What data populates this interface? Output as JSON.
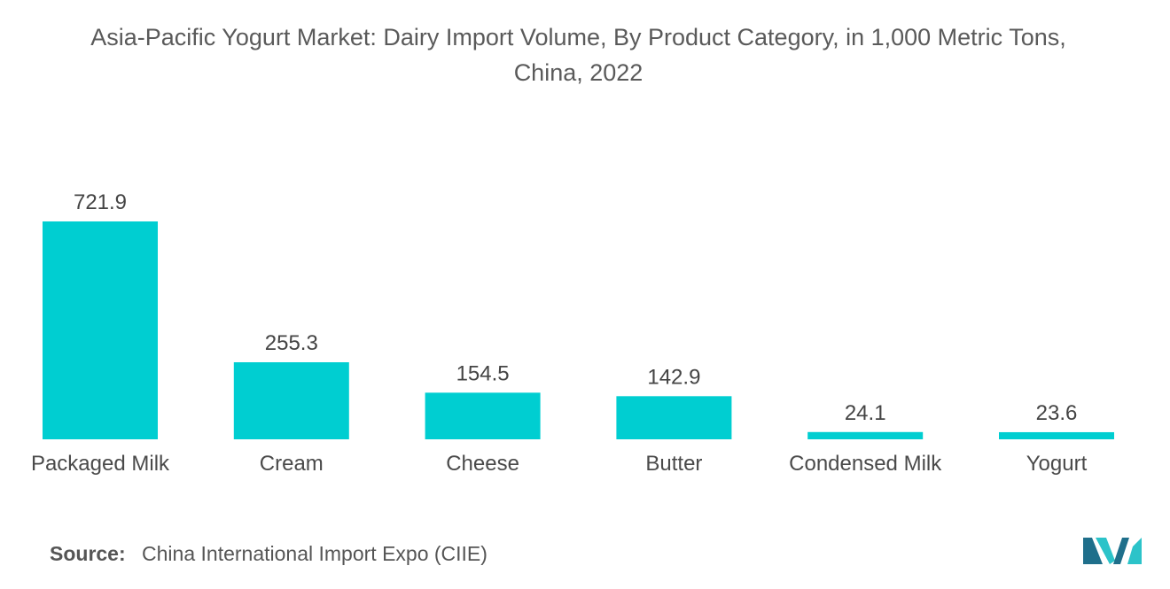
{
  "title_line1": "Asia-Pacific Yogurt Market: Dairy Import Volume, By Product Category, in 1,000 Metric Tons,",
  "title_line2": "China, 2022",
  "source_label": "Source:",
  "source_text": "China International Import Expo (CIIE)",
  "colors": {
    "bar": "#00CED1",
    "logo_dark": "#1F6F8B",
    "logo_light": "#2CC3C9"
  },
  "logo_icon": "mordor-intelligence-logo-icon",
  "chart_data": {
    "type": "bar",
    "title": "Asia-Pacific Yogurt Market: Dairy Import Volume, By Product Category, in 1,000 Metric Tons, China, 2022",
    "categories": [
      "Packaged Milk",
      "Cream",
      "Cheese",
      "Butter",
      "Condensed Milk",
      "Yogurt"
    ],
    "values": [
      721.9,
      255.3,
      154.5,
      142.9,
      24.1,
      23.6
    ],
    "value_labels": [
      "721.9",
      "255.3",
      "154.5",
      "142.9",
      "24.1",
      "23.6"
    ],
    "xlabel": "",
    "ylabel": "",
    "ylim": [
      0,
      721.9
    ],
    "grid": false,
    "legend": "none"
  }
}
